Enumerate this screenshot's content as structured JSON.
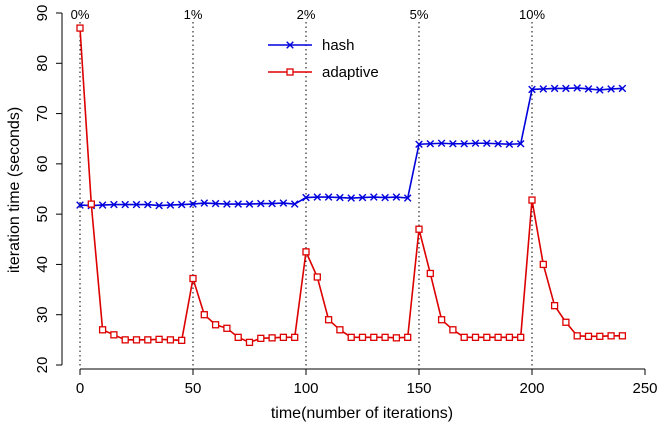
{
  "chart_data": {
    "type": "line",
    "title": "",
    "xlabel": "time(number of iterations)",
    "ylabel": "iteration time (seconds)",
    "xlim": [
      0,
      250
    ],
    "ylim": [
      20,
      90
    ],
    "xticks": [
      0,
      50,
      100,
      150,
      200,
      250
    ],
    "yticks": [
      20,
      30,
      40,
      50,
      60,
      70,
      80,
      90
    ],
    "grid": false,
    "legend": "top-center",
    "phase_markers": [
      {
        "x": 0,
        "label": "0%"
      },
      {
        "x": 50,
        "label": "1%"
      },
      {
        "x": 100,
        "label": "2%"
      },
      {
        "x": 150,
        "label": "5%"
      },
      {
        "x": 200,
        "label": "10%"
      }
    ],
    "series": [
      {
        "name": "hash",
        "color": "#0000dd",
        "marker": "x",
        "x": [
          0,
          5,
          10,
          15,
          20,
          25,
          30,
          35,
          40,
          45,
          50,
          55,
          60,
          65,
          70,
          75,
          80,
          85,
          90,
          95,
          100,
          105,
          110,
          115,
          120,
          125,
          130,
          135,
          140,
          145,
          150,
          155,
          160,
          165,
          170,
          175,
          180,
          185,
          190,
          195,
          200,
          205,
          210,
          215,
          220,
          225,
          230,
          235,
          240
        ],
        "y": [
          51.8,
          51.7,
          51.8,
          51.9,
          51.9,
          51.9,
          51.9,
          51.7,
          51.8,
          51.9,
          52.0,
          52.2,
          52.1,
          52.0,
          52.0,
          52.0,
          52.1,
          52.1,
          52.2,
          52.0,
          53.3,
          53.4,
          53.4,
          53.3,
          53.2,
          53.3,
          53.4,
          53.3,
          53.4,
          53.2,
          63.9,
          64.0,
          64.1,
          64.0,
          64.0,
          64.1,
          64.1,
          64.0,
          63.9,
          64.0,
          74.8,
          74.9,
          75.0,
          75.0,
          75.1,
          74.9,
          74.7,
          74.9,
          75.0
        ]
      },
      {
        "name": "adaptive",
        "color": "#dd0000",
        "marker": "square",
        "x": [
          0,
          5,
          10,
          15,
          20,
          25,
          30,
          35,
          40,
          45,
          50,
          55,
          60,
          65,
          70,
          75,
          80,
          85,
          90,
          95,
          100,
          105,
          110,
          115,
          120,
          125,
          130,
          135,
          140,
          145,
          150,
          155,
          160,
          165,
          170,
          175,
          180,
          185,
          190,
          195,
          200,
          205,
          210,
          215,
          220,
          225,
          230,
          235,
          240
        ],
        "y": [
          87.0,
          52.0,
          27.0,
          26.0,
          25.0,
          25.0,
          25.0,
          25.1,
          25.0,
          24.9,
          37.2,
          30.0,
          28.0,
          27.3,
          25.5,
          24.5,
          25.3,
          25.4,
          25.5,
          25.5,
          42.5,
          37.5,
          29.0,
          27.0,
          25.5,
          25.5,
          25.5,
          25.5,
          25.4,
          25.5,
          47.0,
          38.2,
          29.0,
          27.0,
          25.5,
          25.5,
          25.5,
          25.5,
          25.5,
          25.5,
          52.8,
          40.0,
          31.8,
          28.5,
          25.8,
          25.7,
          25.7,
          25.8,
          25.8
        ]
      }
    ]
  }
}
